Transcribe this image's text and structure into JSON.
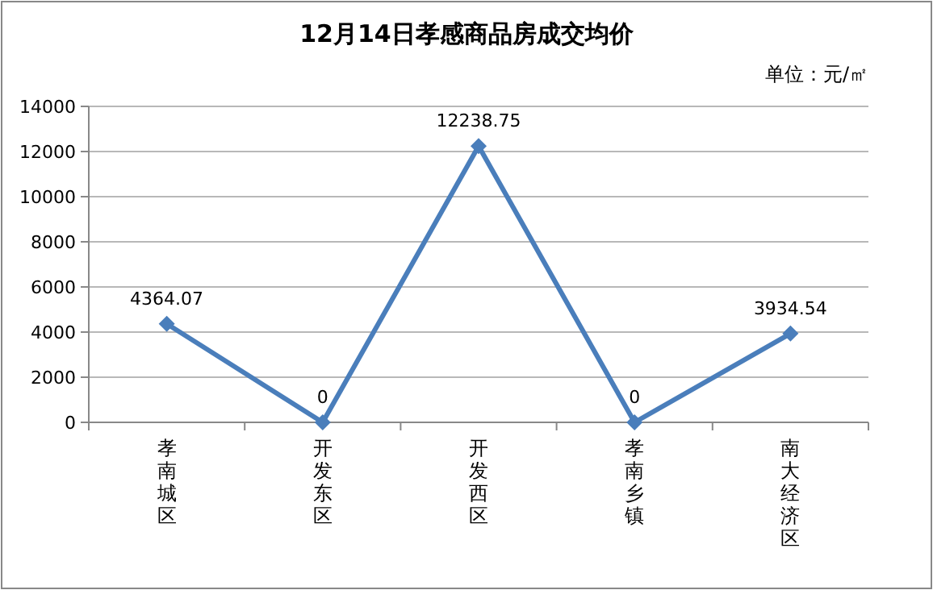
{
  "chart_data": {
    "type": "line",
    "title": "12月14日孝感商品房成交均价",
    "annotations": [
      "单位：元/㎡"
    ],
    "categories": [
      "孝南城区",
      "开发东区",
      "开发西区",
      "孝南乡镇",
      "南大经济区"
    ],
    "series": [
      {
        "color": "#4a7ebb",
        "values": [
          4364.07,
          0,
          12238.75,
          0,
          3934.54
        ]
      }
    ],
    "ylim": [
      0,
      14000
    ],
    "yticks": [
      0,
      2000,
      4000,
      6000,
      8000,
      10000,
      12000,
      14000
    ],
    "grid": "y",
    "marker": "diamond",
    "line_style": "solid",
    "data_labels": true
  }
}
